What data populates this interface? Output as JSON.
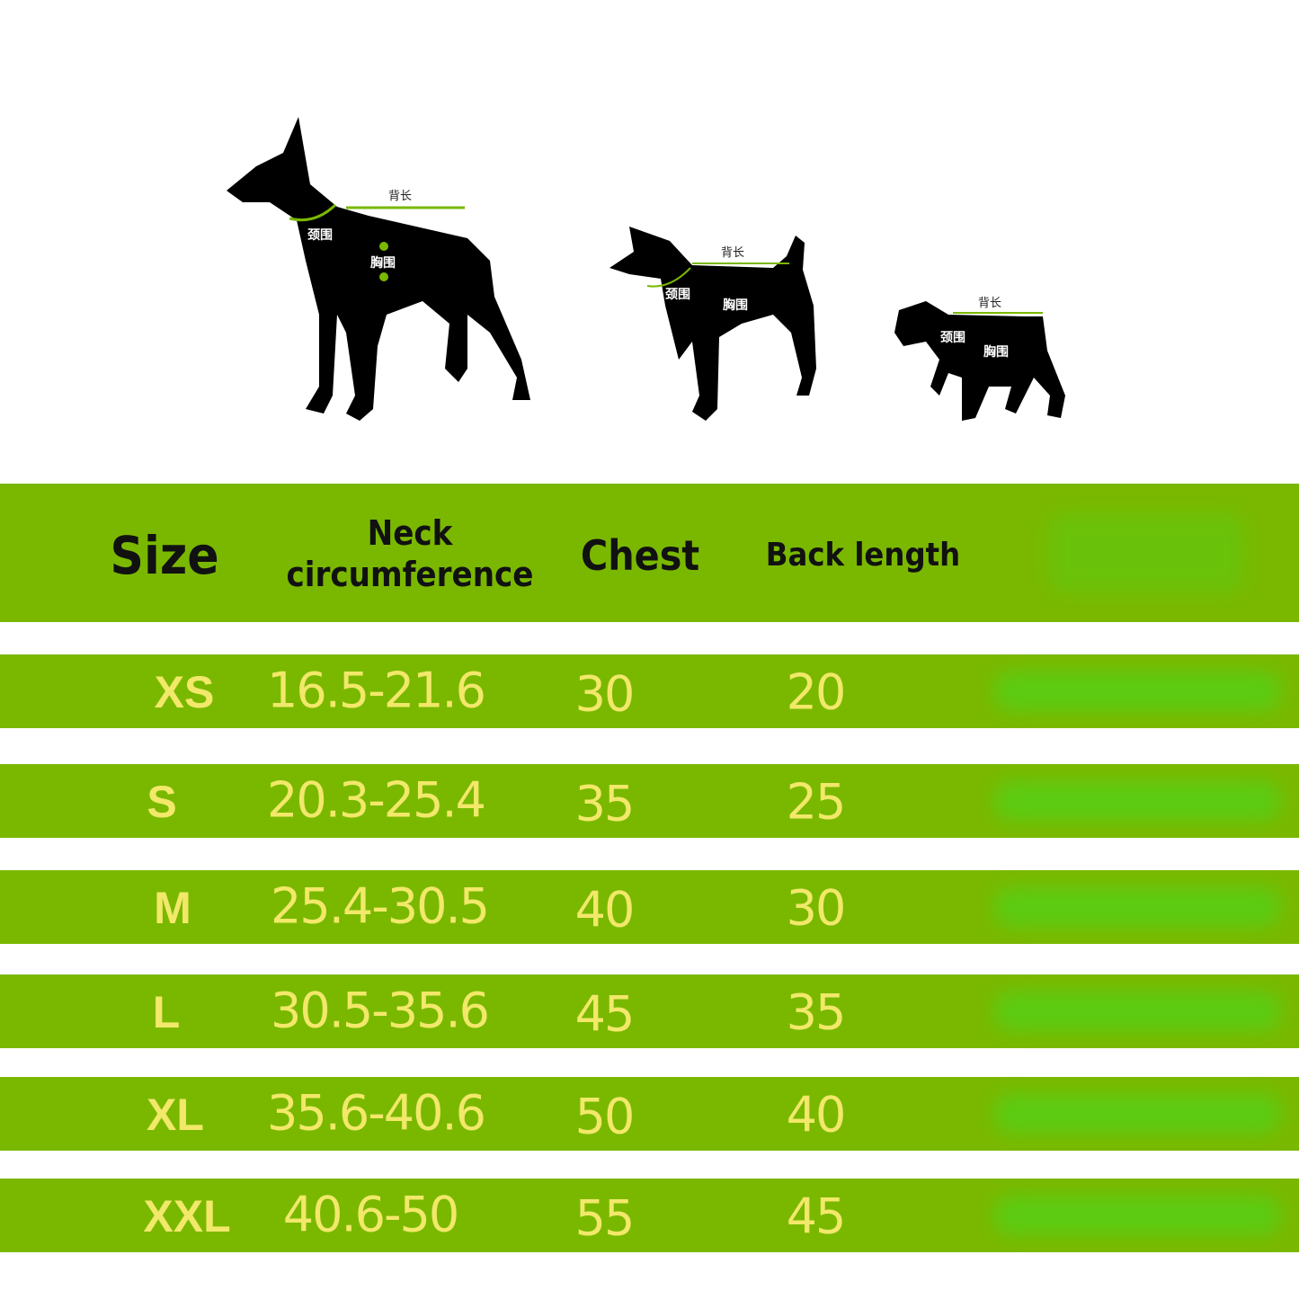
{
  "dog_labels": {
    "back_length": "背长",
    "neck": "颈围",
    "chest": "胸围"
  },
  "colors": {
    "band": "#7ab800",
    "value_text": "#f2e86a",
    "header_text": "#111111",
    "measure_line": "#7ab800"
  },
  "table": {
    "headers": {
      "size": "Size",
      "neck_line1": "Neck",
      "neck_line2": "circumference",
      "chest": "Chest",
      "back": "Back length"
    },
    "rows": [
      {
        "size": "XS",
        "neck": "16.5-21.6",
        "chest": "30",
        "back": "20"
      },
      {
        "size": "S",
        "neck": "20.3-25.4",
        "chest": "35",
        "back": "25"
      },
      {
        "size": "M",
        "neck": "25.4-30.5",
        "chest": "40",
        "back": "30"
      },
      {
        "size": "L",
        "neck": "30.5-35.6",
        "chest": "45",
        "back": "35"
      },
      {
        "size": "XL",
        "neck": "35.6-40.6",
        "chest": "50",
        "back": "40"
      },
      {
        "size": "XXL",
        "neck": "40.6-50",
        "chest": "55",
        "back": "45"
      }
    ]
  }
}
